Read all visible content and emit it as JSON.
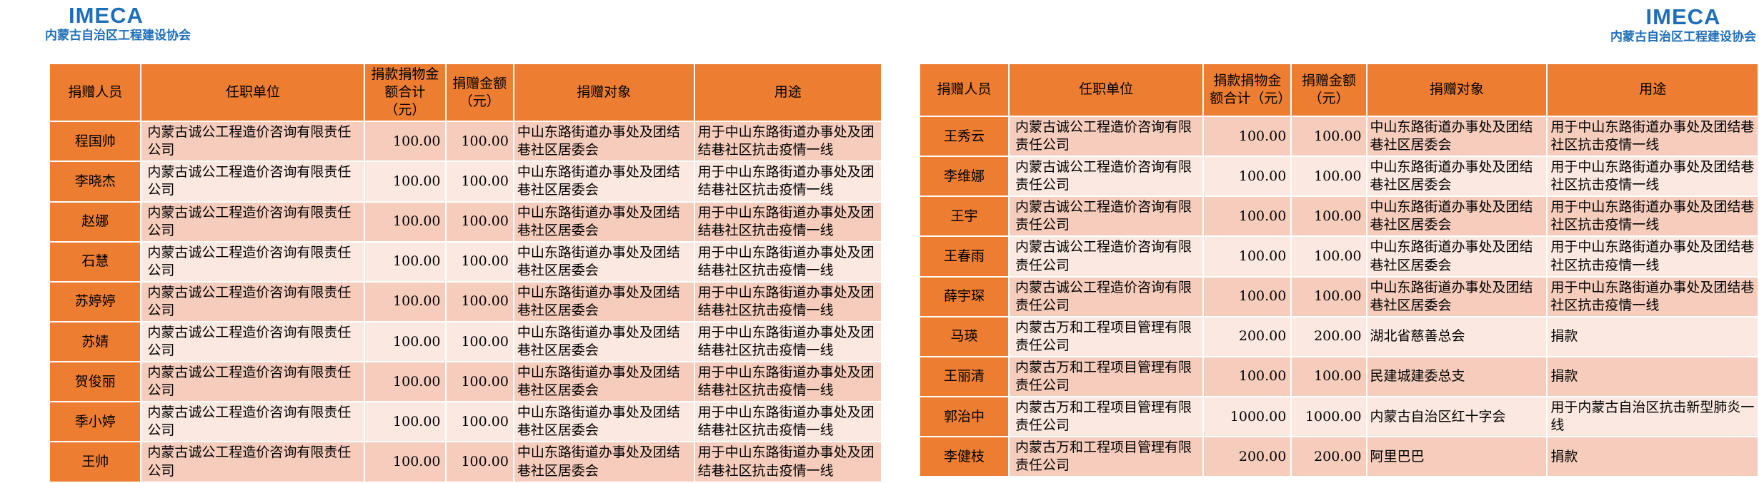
{
  "colors": {
    "brand_blue": "#1F6EB8",
    "accent_orange": "#ED7D31",
    "row_dark": "#F6CDBC",
    "row_light": "#FBE8E0"
  },
  "pages": [
    {
      "logo": "IMECA",
      "org": "内蒙古自治区工程建设协会",
      "table": {
        "columns": [
          "捐赠人员",
          "任职单位",
          "捐款捐物金额合计（元）",
          "捐赠金额（元）",
          "捐赠对象",
          "用途"
        ],
        "rows": [
          [
            "程国帅",
            "内蒙古诚公工程造价咨询有限责任公司",
            "100.00",
            "100.00",
            "中山东路街道办事处及团结巷社区居委会",
            "用于中山东路街道办事处及团结巷社区抗击疫情一线"
          ],
          [
            "李晓杰",
            "内蒙古诚公工程造价咨询有限责任公司",
            "100.00",
            "100.00",
            "中山东路街道办事处及团结巷社区居委会",
            "用于中山东路街道办事处及团结巷社区抗击疫情一线"
          ],
          [
            "赵娜",
            "内蒙古诚公工程造价咨询有限责任公司",
            "100.00",
            "100.00",
            "中山东路街道办事处及团结巷社区居委会",
            "用于中山东路街道办事处及团结巷社区抗击疫情一线"
          ],
          [
            "石慧",
            "内蒙古诚公工程造价咨询有限责任公司",
            "100.00",
            "100.00",
            "中山东路街道办事处及团结巷社区居委会",
            "用于中山东路街道办事处及团结巷社区抗击疫情一线"
          ],
          [
            "苏婷婷",
            "内蒙古诚公工程造价咨询有限责任公司",
            "100.00",
            "100.00",
            "中山东路街道办事处及团结巷社区居委会",
            "用于中山东路街道办事处及团结巷社区抗击疫情一线"
          ],
          [
            "苏婧",
            "内蒙古诚公工程造价咨询有限责任公司",
            "100.00",
            "100.00",
            "中山东路街道办事处及团结巷社区居委会",
            "用于中山东路街道办事处及团结巷社区抗击疫情一线"
          ],
          [
            "贺俊丽",
            "内蒙古诚公工程造价咨询有限责任公司",
            "100.00",
            "100.00",
            "中山东路街道办事处及团结巷社区居委会",
            "用于中山东路街道办事处及团结巷社区抗击疫情一线"
          ],
          [
            "季小婷",
            "内蒙古诚公工程造价咨询有限责任公司",
            "100.00",
            "100.00",
            "中山东路街道办事处及团结巷社区居委会",
            "用于中山东路街道办事处及团结巷社区抗击疫情一线"
          ],
          [
            "王帅",
            "内蒙古诚公工程造价咨询有限责任公司",
            "100.00",
            "100.00",
            "中山东路街道办事处及团结巷社区居委会",
            "用于中山东路街道办事处及团结巷社区抗击疫情一线"
          ]
        ]
      }
    },
    {
      "logo": "IMECA",
      "org": "内蒙古自治区工程建设协会",
      "table": {
        "columns": [
          "捐赠人员",
          "任职单位",
          "捐款捐物金额合计（元）",
          "捐赠金额（元）",
          "捐赠对象",
          "用途"
        ],
        "rows": [
          [
            "王秀云",
            "内蒙古诚公工程造价咨询有限责任公司",
            "100.00",
            "100.00",
            "中山东路街道办事处及团结巷社区居委会",
            "用于中山东路街道办事处及团结巷社区抗击疫情一线"
          ],
          [
            "李维娜",
            "内蒙古诚公工程造价咨询有限责任公司",
            "100.00",
            "100.00",
            "中山东路街道办事处及团结巷社区居委会",
            "用于中山东路街道办事处及团结巷社区抗击疫情一线"
          ],
          [
            "王宇",
            "内蒙古诚公工程造价咨询有限责任公司",
            "100.00",
            "100.00",
            "中山东路街道办事处及团结巷社区居委会",
            "用于中山东路街道办事处及团结巷社区抗击疫情一线"
          ],
          [
            "王春雨",
            "内蒙古诚公工程造价咨询有限责任公司",
            "100.00",
            "100.00",
            "中山东路街道办事处及团结巷社区居委会",
            "用于中山东路街道办事处及团结巷社区抗击疫情一线"
          ],
          [
            "薛宇琛",
            "内蒙古诚公工程造价咨询有限责任公司",
            "100.00",
            "100.00",
            "中山东路街道办事处及团结巷社区居委会",
            "用于中山东路街道办事处及团结巷社区抗击疫情一线"
          ],
          [
            "马瑛",
            "内蒙古万和工程项目管理有限责任公司",
            "200.00",
            "200.00",
            "湖北省慈善总会",
            "捐款"
          ],
          [
            "王丽清",
            "内蒙古万和工程项目管理有限责任公司",
            "100.00",
            "100.00",
            "民建城建委总支",
            "捐款"
          ],
          [
            "郭治中",
            "内蒙古万和工程项目管理有限责任公司",
            "1000.00",
            "1000.00",
            "内蒙古自治区红十字会",
            "用于内蒙古自治区抗击新型肺炎一线"
          ],
          [
            "李健枝",
            "内蒙古万和工程项目管理有限责任公司",
            "200.00",
            "200.00",
            "阿里巴巴",
            "捐款"
          ]
        ]
      }
    }
  ]
}
